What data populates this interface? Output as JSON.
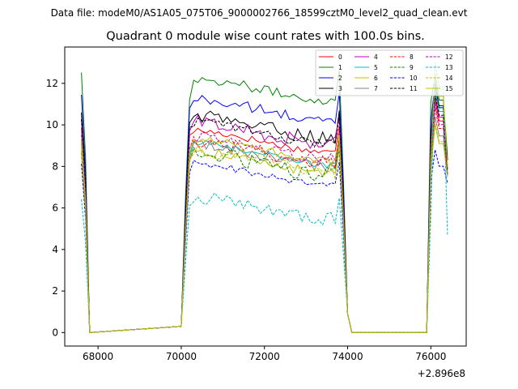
{
  "header": {
    "data_file": "Data file: modeM0/AS1A05_075T06_9000002766_18599cztM0_level2_quad_clean.evt"
  },
  "chart_data": {
    "type": "line",
    "title": "Quadrant 0 module wise count rates with 100.0s bins.",
    "xlabel": "",
    "ylabel": "",
    "x_offset_label": "+2.896e8",
    "xlim": [
      67200,
      76850
    ],
    "ylim": [
      -0.65,
      13.75
    ],
    "x_ticks": [
      68000,
      70000,
      72000,
      74000,
      76000
    ],
    "x_tick_labels": [
      "68000",
      "70000",
      "72000",
      "74000",
      "76000"
    ],
    "y_ticks": [
      0,
      2,
      4,
      6,
      8,
      10,
      12
    ],
    "y_tick_labels": [
      "0",
      "2",
      "4",
      "6",
      "8",
      "10",
      "12"
    ],
    "grid": false,
    "legend_position": "top-right",
    "legend_columns": 4,
    "seg_starts": [
      67600,
      70000,
      73900,
      75900
    ],
    "seg_ends": [
      67800,
      73900,
      75900,
      76400
    ],
    "seg_kinds": [
      "drop",
      "plateau",
      "gap",
      "burst"
    ],
    "series": [
      {
        "name": "0",
        "color": "#ff0000",
        "dash": false,
        "level": 9.2,
        "first": 9.5,
        "burst_peak": 11.2,
        "burst_end": 8.0
      },
      {
        "name": "1",
        "color": "#008000",
        "dash": false,
        "level": 11.7,
        "first": 11.2,
        "burst_peak": 12.3,
        "burst_end": 8.5
      },
      {
        "name": "2",
        "color": "#0000ff",
        "dash": false,
        "level": 10.7,
        "first": 10.8,
        "burst_peak": 12.0,
        "burst_end": 8.3
      },
      {
        "name": "3",
        "color": "#000000",
        "dash": false,
        "level": 9.9,
        "first": 10.1,
        "burst_peak": 11.9,
        "burst_end": 8.3
      },
      {
        "name": "4",
        "color": "#bf00bf",
        "dash": false,
        "level": 9.6,
        "first": 9.7,
        "burst_peak": 11.4,
        "burst_end": 8.0
      },
      {
        "name": "5",
        "color": "#00bfbf",
        "dash": false,
        "level": 8.6,
        "first": 8.6,
        "burst_peak": 11.7,
        "burst_end": 7.8
      },
      {
        "name": "6",
        "color": "#bfbf00",
        "dash": false,
        "level": 8.2,
        "first": 8.3,
        "burst_peak": 10.0,
        "burst_end": 7.5
      },
      {
        "name": "7",
        "color": "#808080",
        "dash": false,
        "level": 8.5,
        "first": 8.4,
        "burst_peak": 10.4,
        "burst_end": 7.6
      },
      {
        "name": "8",
        "color": "#ff0000",
        "dash": true,
        "level": 8.7,
        "first": 8.8,
        "burst_peak": 10.8,
        "burst_end": 7.6
      },
      {
        "name": "9",
        "color": "#008000",
        "dash": true,
        "level": 8.1,
        "first": 8.2,
        "burst_peak": 11.9,
        "burst_end": 7.7
      },
      {
        "name": "10",
        "color": "#0000ff",
        "dash": true,
        "level": 7.6,
        "first": 7.7,
        "burst_peak": 8.8,
        "burst_end": 7.2
      },
      {
        "name": "11",
        "color": "#000000",
        "dash": true,
        "level": 9.6,
        "first": 9.9,
        "burst_peak": 11.5,
        "burst_end": 7.9
      },
      {
        "name": "12",
        "color": "#bf00bf",
        "dash": true,
        "level": 8.9,
        "first": 8.9,
        "burst_peak": 11.0,
        "burst_end": 7.6
      },
      {
        "name": "13",
        "color": "#00bfbf",
        "dash": true,
        "level": 6.0,
        "first": 6.1,
        "burst_peak": 13.0,
        "burst_end": 4.7
      },
      {
        "name": "14",
        "color": "#bfbf00",
        "dash": true,
        "level": 8.3,
        "first": 8.3,
        "burst_peak": 10.1,
        "burst_end": 7.5
      },
      {
        "name": "15",
        "color": "#bfbf00",
        "dash": false,
        "level": 8.8,
        "first": 8.8,
        "burst_peak": 12.5,
        "burst_end": 8.0
      }
    ]
  }
}
